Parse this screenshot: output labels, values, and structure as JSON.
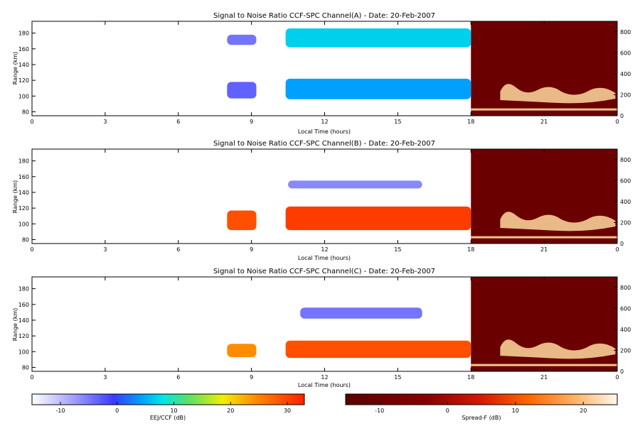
{
  "chart_data": [
    {
      "type": "heatmap",
      "title": "Signal to Noise Ratio CCF-SPC Channel(A) - Date: 20-Feb-2007",
      "xlabel": "Local Time (hours)",
      "ylabel": "Range (km)",
      "xlim": [
        0,
        24
      ],
      "ylim": [
        75,
        195
      ],
      "xticks": [
        "0",
        "3",
        "6",
        "9",
        "12",
        "15",
        "18",
        "21",
        "0"
      ],
      "yticks": [
        80,
        100,
        120,
        140,
        160,
        180
      ],
      "right_ylim": [
        0,
        900
      ],
      "right_yticks": [
        0,
        200,
        400,
        600,
        800
      ],
      "left_segment": "EEJ/CCF (dB)",
      "right_segment": "Spread-F (dB)",
      "echo_layers": [
        {
          "t_start": 8.0,
          "t_end": 9.2,
          "range_low": 165,
          "range_high": 178,
          "snr_db": -8
        },
        {
          "t_start": 10.4,
          "t_end": 18.0,
          "range_low": 162,
          "range_high": 186,
          "snr_db": 2
        },
        {
          "t_start": 8.0,
          "t_end": 9.2,
          "range_low": 97,
          "range_high": 118,
          "snr_db": -7
        },
        {
          "t_start": 10.4,
          "t_end": 18.0,
          "range_low": 96,
          "range_high": 122,
          "snr_db": 0
        }
      ]
    },
    {
      "type": "heatmap",
      "title": "Signal to Noise Ratio CCF-SPC Channel(B) - Date: 20-Feb-2007",
      "xlabel": "Local Time (hours)",
      "ylabel": "Range (km)",
      "xlim": [
        0,
        24
      ],
      "ylim": [
        75,
        195
      ],
      "xticks": [
        "0",
        "3",
        "6",
        "9",
        "12",
        "15",
        "18",
        "21",
        "0"
      ],
      "yticks": [
        80,
        100,
        120,
        140,
        160,
        180
      ],
      "right_ylim": [
        0,
        900
      ],
      "right_yticks": [
        0,
        200,
        400,
        600,
        800
      ],
      "echo_layers": [
        {
          "t_start": 10.5,
          "t_end": 16.0,
          "range_low": 145,
          "range_high": 155,
          "snr_db": -9
        },
        {
          "t_start": 8.0,
          "t_end": 9.2,
          "range_low": 92,
          "range_high": 117,
          "snr_db": 28
        },
        {
          "t_start": 10.4,
          "t_end": 18.0,
          "range_low": 92,
          "range_high": 122,
          "snr_db": 30
        }
      ]
    },
    {
      "type": "heatmap",
      "title": "Signal to Noise Ratio CCF-SPC Channel(C) - Date: 20-Feb-2007",
      "xlabel": "Local Time (hours)",
      "ylabel": "Range (km)",
      "xlim": [
        0,
        24
      ],
      "ylim": [
        75,
        195
      ],
      "xticks": [
        "0",
        "3",
        "6",
        "9",
        "12",
        "15",
        "18",
        "21",
        "0"
      ],
      "yticks": [
        80,
        100,
        120,
        140,
        160,
        180
      ],
      "right_ylim": [
        0,
        900
      ],
      "right_yticks": [
        0,
        200,
        400,
        600,
        800
      ],
      "echo_layers": [
        {
          "t_start": 11.0,
          "t_end": 16.0,
          "range_low": 142,
          "range_high": 156,
          "snr_db": -8
        },
        {
          "t_start": 8.0,
          "t_end": 9.2,
          "range_low": 93,
          "range_high": 110,
          "snr_db": 22
        },
        {
          "t_start": 10.4,
          "t_end": 18.0,
          "range_low": 92,
          "range_high": 114,
          "snr_db": 28
        }
      ]
    }
  ],
  "colorbars": [
    {
      "label": "EEJ/CCF (dB)",
      "ticks": [
        -10,
        0,
        10,
        20,
        30
      ],
      "range": [
        -15,
        33
      ],
      "colormap": "white-blue-cyan-green-yellow-red"
    },
    {
      "label": "Spread-F (dB)",
      "ticks": [
        -10,
        0,
        10,
        20
      ],
      "range": [
        -15,
        25
      ],
      "colormap": "darkred-red-orange-white"
    }
  ],
  "colors": {
    "spread_f_background": "#6b0000",
    "echo_trace": "#ffd9a0"
  }
}
